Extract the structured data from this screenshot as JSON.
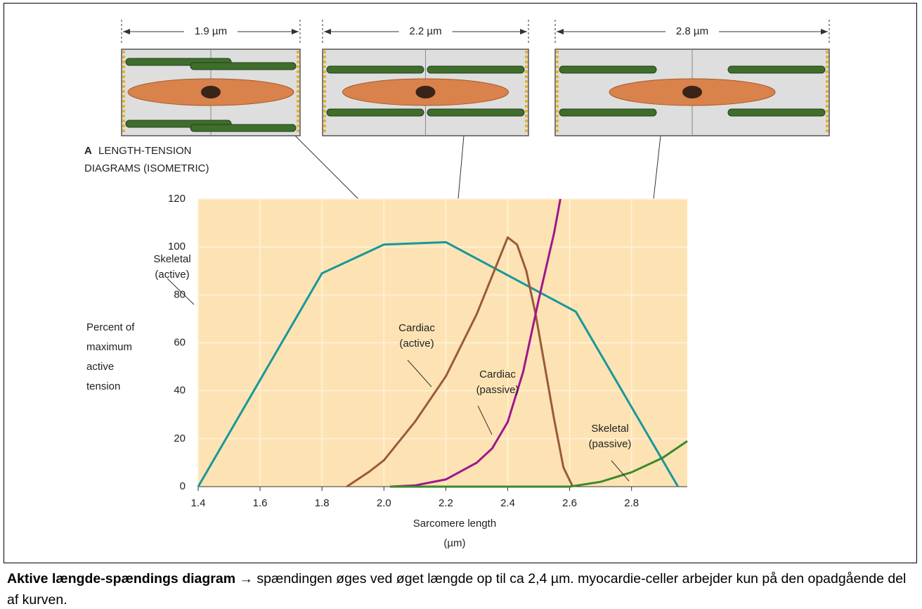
{
  "sarcomeres": [
    {
      "label": "1.9 µm"
    },
    {
      "label": "2.2 µm"
    },
    {
      "label": "2.8 µm"
    }
  ],
  "chart_data": {
    "type": "line",
    "panel": "A",
    "title": [
      "LENGTH-TENSION",
      "DIAGRAMS (ISOMETRIC)"
    ],
    "xlabel": [
      "Sarcomere length",
      "(µm)"
    ],
    "ylabel": [
      "Percent of",
      "maximum",
      "active",
      "tension"
    ],
    "xlim": [
      1.4,
      2.98
    ],
    "ylim": [
      0,
      120
    ],
    "xticks": [
      1.4,
      1.6,
      1.8,
      {
        "value": 2.0,
        "label": "2.0"
      },
      2.2,
      2.4,
      2.6,
      2.8
    ],
    "yticks": [
      0,
      20,
      40,
      60,
      80,
      100,
      120
    ],
    "grid": true,
    "background": "#fde3b3",
    "series": [
      {
        "name": "Skeletal (active)",
        "color": "#17979c",
        "x": [
          1.4,
          1.8,
          2.0,
          2.2,
          2.62,
          2.95
        ],
        "values": [
          0,
          89,
          101,
          102,
          73,
          0
        ]
      },
      {
        "name": "Cardiac (active)",
        "color": "#9b5a3a",
        "x": [
          1.88,
          1.95,
          2.0,
          2.1,
          2.2,
          2.3,
          2.35,
          2.4,
          2.43,
          2.46,
          2.49,
          2.52,
          2.55,
          2.58,
          2.61
        ],
        "values": [
          0,
          6,
          11,
          27,
          46,
          72,
          88,
          104,
          101,
          90,
          72,
          50,
          28,
          8,
          0
        ]
      },
      {
        "name": "Cardiac (passive)",
        "color": "#a0168c",
        "x": [
          2.02,
          2.1,
          2.2,
          2.3,
          2.35,
          2.4,
          2.45,
          2.5,
          2.55,
          2.57
        ],
        "values": [
          0,
          0.5,
          3,
          10,
          16,
          27,
          48,
          78,
          106,
          120
        ]
      },
      {
        "name": "Skeletal (passive)",
        "color": "#3b8a2a",
        "x": [
          2.02,
          2.6,
          2.7,
          2.8,
          2.9,
          2.98
        ],
        "values": [
          0,
          0,
          2,
          6,
          12,
          19
        ]
      }
    ]
  },
  "caption": {
    "bold": "Aktive længde-spændings diagram",
    "text": " → spændingen øges ved øget længde op til ca 2,4 µm. myocardie-celler arbejder kun på den opadgående del af kurven."
  }
}
